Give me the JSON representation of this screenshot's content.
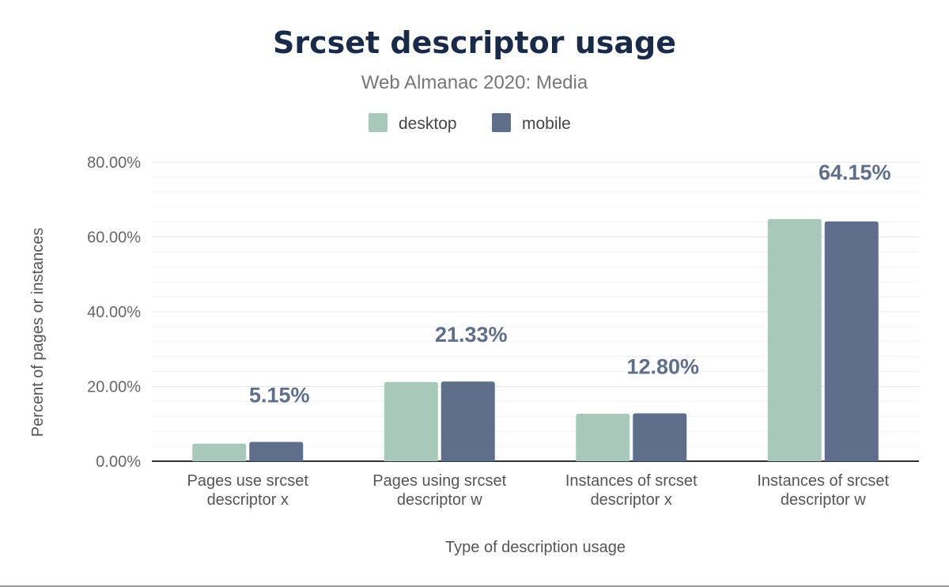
{
  "chart_data": {
    "type": "bar",
    "title": "Srcset descriptor usage",
    "subtitle": "Web Almanac 2020: Media",
    "xlabel": "Type of description usage",
    "ylabel": "Percent of pages or instances",
    "categories": [
      [
        "Pages use srcset",
        "descriptor x"
      ],
      [
        "Pages using srcset",
        "descriptor w"
      ],
      [
        "Instances of srcset",
        "descriptor x"
      ],
      [
        "Instances of srcset",
        "descriptor w"
      ]
    ],
    "series": [
      {
        "name": "desktop",
        "color": "#a8c9b9",
        "values": [
          4.7,
          21.2,
          12.7,
          64.8
        ]
      },
      {
        "name": "mobile",
        "color": "#5f6f8b",
        "values": [
          5.15,
          21.33,
          12.8,
          64.15
        ]
      }
    ],
    "data_labels": [
      "5.15%",
      "21.33%",
      "12.80%",
      "64.15%"
    ],
    "yticks": [
      "0.00%",
      "20.00%",
      "40.00%",
      "60.00%",
      "80.00%"
    ],
    "ylim": [
      0,
      80
    ],
    "grid": true,
    "legend_position": "top-center",
    "title_color": "#1a2b4a",
    "label_color": "#5f6f8b"
  }
}
